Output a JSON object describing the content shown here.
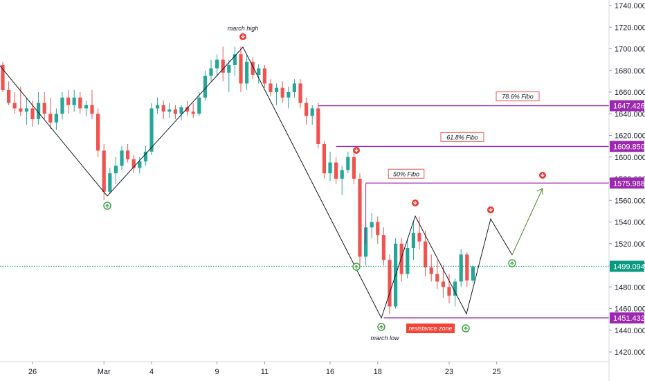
{
  "chart_data": {
    "type": "candlestick",
    "ylim": [
      1410,
      1750
    ],
    "y_ticks": [
      "1420.000",
      "1440.000",
      "1460.000",
      "1480.000",
      "1500.000",
      "1520.000",
      "1540.000",
      "1560.000",
      "1580.000",
      "1600.000",
      "1620.000",
      "1640.000",
      "1660.000",
      "1680.000",
      "1700.000",
      "1720.000",
      "1740.000"
    ],
    "x_ticks": [
      {
        "label": "26",
        "bar": 5
      },
      {
        "label": "Mar",
        "bar": 17
      },
      {
        "label": "4",
        "bar": 25
      },
      {
        "label": "9",
        "bar": 36
      },
      {
        "label": "11",
        "bar": 44
      },
      {
        "label": "16",
        "bar": 55
      },
      {
        "label": "18",
        "bar": 63
      },
      {
        "label": "23",
        "bar": 75
      },
      {
        "label": "25",
        "bar": 83
      }
    ],
    "colors": {
      "up": "#26a69a",
      "down": "#ef5350",
      "line": "#131722",
      "level": "#9c27b0",
      "current": "#089981",
      "projection": "#4c8a2c",
      "signal_down": "#e53935",
      "signal_up": "#43a047"
    },
    "ohlc": [
      [
        1685,
        1688,
        1660,
        1662
      ],
      [
        1662,
        1670,
        1648,
        1650
      ],
      [
        1650,
        1660,
        1640,
        1645
      ],
      [
        1645,
        1665,
        1638,
        1642
      ],
      [
        1642,
        1655,
        1630,
        1645
      ],
      [
        1645,
        1652,
        1628,
        1635
      ],
      [
        1635,
        1660,
        1630,
        1650
      ],
      [
        1650,
        1660,
        1635,
        1640
      ],
      [
        1640,
        1655,
        1626,
        1632
      ],
      [
        1632,
        1645,
        1625,
        1640
      ],
      [
        1640,
        1660,
        1635,
        1655
      ],
      [
        1655,
        1662,
        1640,
        1648
      ],
      [
        1648,
        1662,
        1642,
        1655
      ],
      [
        1655,
        1660,
        1640,
        1645
      ],
      [
        1645,
        1652,
        1638,
        1648
      ],
      [
        1648,
        1662,
        1635,
        1640
      ],
      [
        1640,
        1645,
        1600,
        1606
      ],
      [
        1606,
        1612,
        1560,
        1568
      ],
      [
        1568,
        1590,
        1566,
        1585
      ],
      [
        1585,
        1600,
        1575,
        1592
      ],
      [
        1592,
        1610,
        1588,
        1606
      ],
      [
        1606,
        1612,
        1595,
        1598
      ],
      [
        1598,
        1602,
        1585,
        1590
      ],
      [
        1590,
        1600,
        1585,
        1596
      ],
      [
        1596,
        1610,
        1592,
        1605
      ],
      [
        1605,
        1650,
        1602,
        1645
      ],
      [
        1645,
        1655,
        1640,
        1648
      ],
      [
        1648,
        1652,
        1635,
        1642
      ],
      [
        1642,
        1650,
        1636,
        1644
      ],
      [
        1644,
        1648,
        1635,
        1640
      ],
      [
        1640,
        1648,
        1634,
        1646
      ],
      [
        1646,
        1652,
        1638,
        1642
      ],
      [
        1642,
        1650,
        1636,
        1640
      ],
      [
        1640,
        1660,
        1638,
        1655
      ],
      [
        1655,
        1680,
        1652,
        1675
      ],
      [
        1675,
        1690,
        1670,
        1682
      ],
      [
        1682,
        1695,
        1675,
        1690
      ],
      [
        1690,
        1702,
        1670,
        1678
      ],
      [
        1678,
        1690,
        1660,
        1685
      ],
      [
        1685,
        1702,
        1675,
        1695
      ],
      [
        1695,
        1702,
        1660,
        1668
      ],
      [
        1668,
        1695,
        1662,
        1688
      ],
      [
        1688,
        1692,
        1672,
        1676
      ],
      [
        1676,
        1686,
        1668,
        1682
      ],
      [
        1682,
        1685,
        1664,
        1668
      ],
      [
        1668,
        1672,
        1656,
        1660
      ],
      [
        1660,
        1668,
        1648,
        1664
      ],
      [
        1664,
        1670,
        1650,
        1655
      ],
      [
        1655,
        1665,
        1645,
        1660
      ],
      [
        1660,
        1672,
        1655,
        1668
      ],
      [
        1668,
        1672,
        1645,
        1650
      ],
      [
        1650,
        1655,
        1630,
        1638
      ],
      [
        1638,
        1648,
        1630,
        1645
      ],
      [
        1645,
        1650,
        1608,
        1612
      ],
      [
        1612,
        1615,
        1580,
        1585
      ],
      [
        1585,
        1605,
        1578,
        1595
      ],
      [
        1595,
        1600,
        1575,
        1580
      ],
      [
        1580,
        1592,
        1565,
        1588
      ],
      [
        1588,
        1605,
        1585,
        1600
      ],
      [
        1600,
        1605,
        1575,
        1580
      ],
      [
        1580,
        1585,
        1500,
        1508
      ],
      [
        1508,
        1540,
        1500,
        1535
      ],
      [
        1535,
        1548,
        1525,
        1540
      ],
      [
        1540,
        1545,
        1520,
        1528
      ],
      [
        1528,
        1535,
        1500,
        1505
      ],
      [
        1505,
        1510,
        1455,
        1462
      ],
      [
        1462,
        1525,
        1460,
        1520
      ],
      [
        1520,
        1525,
        1485,
        1492
      ],
      [
        1492,
        1525,
        1488,
        1516
      ],
      [
        1516,
        1540,
        1505,
        1530
      ],
      [
        1530,
        1545,
        1515,
        1522
      ],
      [
        1522,
        1532,
        1490,
        1498
      ],
      [
        1498,
        1510,
        1485,
        1492
      ],
      [
        1492,
        1505,
        1478,
        1485
      ],
      [
        1485,
        1500,
        1470,
        1480
      ],
      [
        1480,
        1492,
        1465,
        1472
      ],
      [
        1472,
        1488,
        1462,
        1485
      ],
      [
        1485,
        1515,
        1480,
        1510
      ],
      [
        1510,
        1512,
        1480,
        1486
      ],
      [
        1486,
        1500,
        1484,
        1499
      ]
    ],
    "levels": [
      {
        "label": "78.6% Fibo",
        "price_label": "1647.426"
      },
      {
        "label": "61.8% Fibo",
        "price_label": "1609.850"
      },
      {
        "label": "50% Fibo",
        "price_label": "1575.988"
      }
    ],
    "current_price": {
      "price_label": "1499.094"
    },
    "low_line": {
      "price_label": "1451.432"
    },
    "annotations": {
      "march_high": "march high",
      "march_low": "march low",
      "resistance_zone": "resistance zone"
    }
  }
}
